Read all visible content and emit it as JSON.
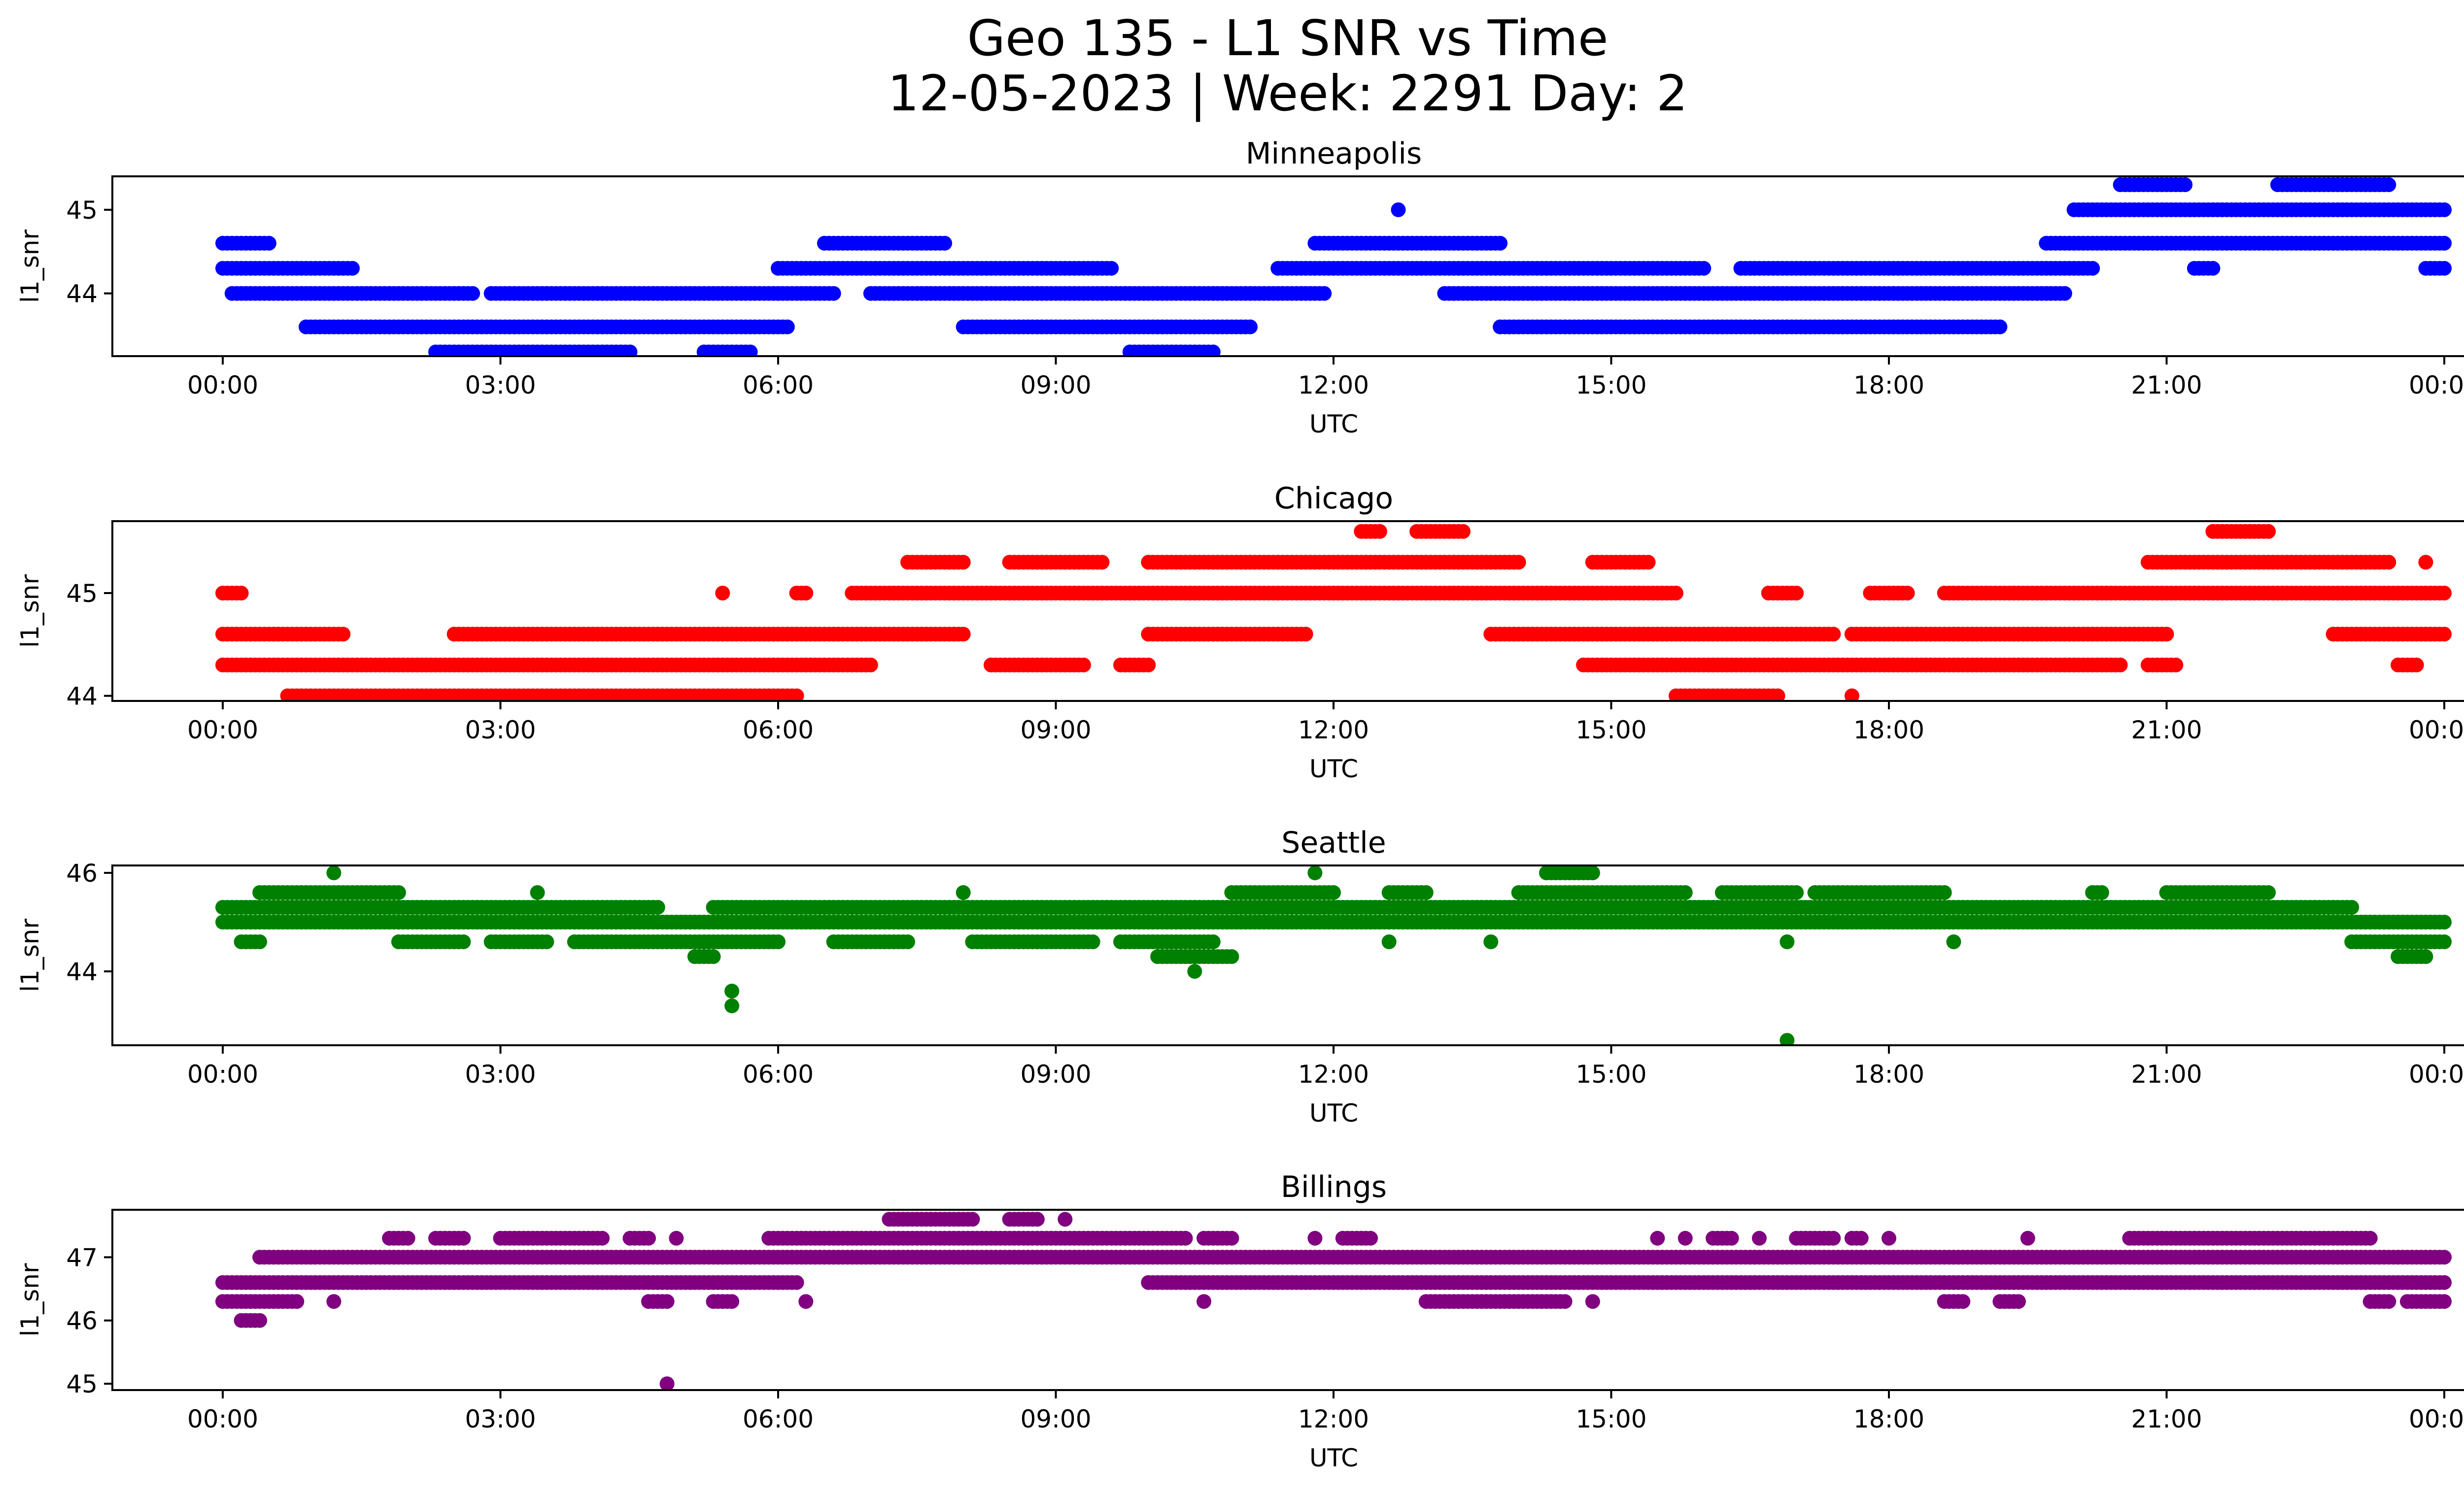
{
  "title_line1": "Geo 135 - L1 SNR vs Time",
  "title_line2": "12-05-2023 | Week: 2291 Day: 2",
  "xlabel": "UTC",
  "ylabel": "l1_snr",
  "xticks": [
    "00:00",
    "03:00",
    "06:00",
    "09:00",
    "12:00",
    "15:00",
    "18:00",
    "21:00",
    "00:00"
  ],
  "chart_data": [
    {
      "type": "scatter",
      "title": "Minneapolis",
      "color": "#0000ff",
      "xlabel": "UTC",
      "ylabel": "l1_snr",
      "xlim_hours": [
        -1.1,
        25.2
      ],
      "ylim": [
        43.25,
        45.4
      ],
      "yticks": [
        44,
        45
      ],
      "grid": false,
      "bands": [
        {
          "y": 44.6,
          "x": [
            [
              0.0,
              0.5
            ],
            [
              6.5,
              7.8
            ],
            [
              11.8,
              13.8
            ],
            [
              19.7,
              24.0
            ]
          ]
        },
        {
          "y": 44.3,
          "x": [
            [
              0.0,
              1.4
            ],
            [
              6.0,
              9.6
            ],
            [
              11.4,
              16.0
            ],
            [
              16.4,
              20.2
            ],
            [
              21.3,
              21.5
            ],
            [
              23.8,
              24.0
            ]
          ]
        },
        {
          "y": 44.0,
          "x": [
            [
              0.1,
              2.7
            ],
            [
              2.9,
              6.6
            ],
            [
              7.0,
              11.9
            ],
            [
              13.2,
              19.9
            ]
          ]
        },
        {
          "y": 43.6,
          "x": [
            [
              0.9,
              6.1
            ],
            [
              8.0,
              11.1
            ],
            [
              13.8,
              19.2
            ]
          ]
        },
        {
          "y": 43.3,
          "x": [
            [
              2.3,
              4.4
            ],
            [
              5.2,
              5.7
            ],
            [
              9.8,
              10.7
            ]
          ]
        },
        {
          "y": 45.0,
          "x": [
            [
              12.7,
              12.7
            ],
            [
              20.0,
              24.0
            ]
          ]
        },
        {
          "y": 45.3,
          "x": [
            [
              20.5,
              21.2
            ],
            [
              22.2,
              23.4
            ]
          ]
        }
      ]
    },
    {
      "type": "scatter",
      "title": "Chicago",
      "color": "#ff0000",
      "xlabel": "UTC",
      "ylabel": "l1_snr",
      "xlim_hours": [
        -1.1,
        25.2
      ],
      "ylim": [
        43.95,
        45.7
      ],
      "yticks": [
        44,
        45
      ],
      "grid": false,
      "bands": [
        {
          "y": 45.0,
          "x": [
            [
              0.0,
              0.2
            ],
            [
              5.4,
              5.4
            ],
            [
              6.2,
              6.3
            ],
            [
              6.8,
              15.7
            ],
            [
              16.7,
              17.0
            ],
            [
              17.8,
              18.2
            ],
            [
              18.6,
              24.0
            ]
          ]
        },
        {
          "y": 44.6,
          "x": [
            [
              0.0,
              1.3
            ],
            [
              2.5,
              8.0
            ],
            [
              10.0,
              11.7
            ],
            [
              13.7,
              17.4
            ],
            [
              17.6,
              21.0
            ],
            [
              22.8,
              24.0
            ]
          ]
        },
        {
          "y": 44.3,
          "x": [
            [
              0.0,
              7.0
            ],
            [
              8.3,
              9.3
            ],
            [
              9.7,
              10.0
            ],
            [
              14.7,
              20.5
            ],
            [
              20.8,
              21.1
            ],
            [
              23.5,
              23.7
            ]
          ]
        },
        {
          "y": 44.0,
          "x": [
            [
              0.7,
              6.2
            ],
            [
              15.7,
              16.8
            ],
            [
              17.6,
              17.6
            ]
          ]
        },
        {
          "y": 45.3,
          "x": [
            [
              7.4,
              8.0
            ],
            [
              8.5,
              9.5
            ],
            [
              10.0,
              14.0
            ],
            [
              14.8,
              15.4
            ],
            [
              20.8,
              23.4
            ],
            [
              23.8,
              23.8
            ]
          ]
        },
        {
          "y": 45.6,
          "x": [
            [
              12.3,
              12.5
            ],
            [
              12.9,
              13.4
            ],
            [
              21.5,
              22.1
            ]
          ]
        }
      ]
    },
    {
      "type": "scatter",
      "title": "Seattle",
      "color": "#008000",
      "xlabel": "UTC",
      "ylabel": "l1_snr",
      "xlim_hours": [
        -1.1,
        25.2
      ],
      "ylim": [
        42.5,
        46.15
      ],
      "yticks": [
        44,
        46
      ],
      "grid": false,
      "bands": [
        {
          "y": 45.0,
          "x": [
            [
              0.0,
              24.0
            ]
          ]
        },
        {
          "y": 45.3,
          "x": [
            [
              0.0,
              4.7
            ],
            [
              5.3,
              23.0
            ]
          ]
        },
        {
          "y": 45.6,
          "x": [
            [
              0.4,
              1.9
            ],
            [
              3.4,
              3.4
            ],
            [
              8.0,
              8.0
            ],
            [
              10.9,
              12.0
            ],
            [
              12.6,
              13.0
            ],
            [
              14.0,
              15.8
            ],
            [
              16.2,
              17.0
            ],
            [
              17.2,
              18.6
            ],
            [
              20.2,
              20.3
            ],
            [
              21.0,
              22.1
            ]
          ]
        },
        {
          "y": 44.6,
          "x": [
            [
              0.2,
              0.4
            ],
            [
              1.9,
              2.6
            ],
            [
              2.9,
              3.5
            ],
            [
              3.8,
              6.0
            ],
            [
              6.6,
              7.4
            ],
            [
              8.1,
              9.4
            ],
            [
              9.7,
              10.7
            ],
            [
              12.6,
              12.6
            ],
            [
              13.7,
              13.7
            ],
            [
              16.9,
              16.9
            ],
            [
              18.7,
              18.7
            ],
            [
              23.0,
              24.0
            ]
          ]
        },
        {
          "y": 44.3,
          "x": [
            [
              5.1,
              5.3
            ],
            [
              10.1,
              10.9
            ],
            [
              23.5,
              23.8
            ]
          ]
        },
        {
          "y": 46.0,
          "x": [
            [
              1.2,
              1.2
            ],
            [
              11.8,
              11.8
            ],
            [
              14.3,
              14.8
            ]
          ]
        },
        {
          "y": 44.0,
          "x": [
            [
              10.5,
              10.5
            ]
          ]
        },
        {
          "y": 43.6,
          "x": [
            [
              5.5,
              5.5
            ]
          ]
        },
        {
          "y": 43.3,
          "x": [
            [
              5.5,
              5.5
            ]
          ]
        },
        {
          "y": 42.6,
          "x": [
            [
              16.9,
              16.9
            ]
          ]
        }
      ]
    },
    {
      "type": "scatter",
      "title": "Billings",
      "color": "#800080",
      "xlabel": "UTC",
      "ylabel": "l1_snr",
      "xlim_hours": [
        -1.1,
        25.2
      ],
      "ylim": [
        44.9,
        47.75
      ],
      "yticks": [
        45,
        46,
        47
      ],
      "grid": false,
      "bands": [
        {
          "y": 47.0,
          "x": [
            [
              0.4,
              24.0
            ]
          ]
        },
        {
          "y": 46.6,
          "x": [
            [
              0.0,
              6.2
            ],
            [
              10.0,
              24.0
            ]
          ]
        },
        {
          "y": 46.3,
          "x": [
            [
              0.0,
              0.8
            ],
            [
              1.2,
              1.2
            ],
            [
              4.6,
              4.8
            ],
            [
              5.3,
              5.5
            ],
            [
              6.3,
              6.3
            ],
            [
              10.6,
              10.6
            ],
            [
              13.0,
              14.5
            ],
            [
              14.8,
              14.8
            ],
            [
              18.6,
              18.8
            ],
            [
              19.2,
              19.4
            ],
            [
              23.2,
              23.4
            ],
            [
              23.6,
              24.0
            ]
          ]
        },
        {
          "y": 46.0,
          "x": [
            [
              0.2,
              0.4
            ]
          ]
        },
        {
          "y": 47.3,
          "x": [
            [
              1.8,
              2.0
            ],
            [
              2.3,
              2.6
            ],
            [
              3.0,
              4.1
            ],
            [
              4.4,
              4.6
            ],
            [
              4.9,
              4.9
            ],
            [
              5.9,
              10.4
            ],
            [
              10.6,
              10.9
            ],
            [
              11.8,
              11.8
            ],
            [
              12.1,
              12.4
            ],
            [
              15.5,
              15.5
            ],
            [
              15.8,
              15.8
            ],
            [
              16.1,
              16.3
            ],
            [
              16.6,
              16.6
            ],
            [
              17.0,
              17.4
            ],
            [
              17.6,
              17.7
            ],
            [
              18.0,
              18.0
            ],
            [
              19.5,
              19.5
            ],
            [
              20.6,
              23.2
            ]
          ]
        },
        {
          "y": 47.6,
          "x": [
            [
              7.2,
              8.1
            ],
            [
              8.5,
              8.8
            ],
            [
              9.1,
              9.1
            ]
          ]
        },
        {
          "y": 45.0,
          "x": [
            [
              4.8,
              4.8
            ]
          ]
        }
      ]
    }
  ]
}
